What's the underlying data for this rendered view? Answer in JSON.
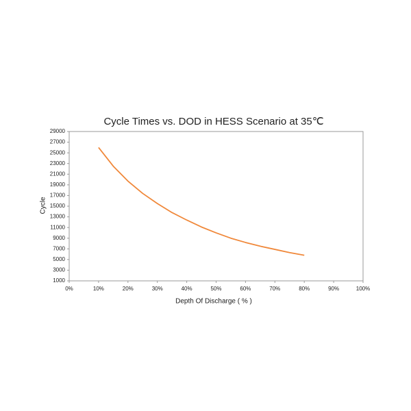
{
  "chart_data": {
    "type": "line",
    "title": "Cycle Times vs. DOD in HESS Scenario at 35℃",
    "x_label": "Depth Of Discharge ( % )",
    "y_label": "Cycle",
    "x": [
      10,
      15,
      20,
      25,
      30,
      35,
      40,
      45,
      50,
      55,
      60,
      65,
      70,
      75,
      80
    ],
    "series": [
      {
        "name": "Cycle",
        "color": "#f0883a",
        "values": [
          26000,
          22500,
          19700,
          17400,
          15500,
          13800,
          12400,
          11100,
          10000,
          9000,
          8200,
          7500,
          6900,
          6300,
          5800
        ]
      }
    ],
    "xlim": [
      0,
      100
    ],
    "xticks": [
      {
        "value": 0,
        "label": "0%"
      },
      {
        "value": 10,
        "label": "10%"
      },
      {
        "value": 20,
        "label": "20%"
      },
      {
        "value": 30,
        "label": "30%"
      },
      {
        "value": 40,
        "label": "40%"
      },
      {
        "value": 50,
        "label": "50%"
      },
      {
        "value": 60,
        "label": "60%"
      },
      {
        "value": 70,
        "label": "70%"
      },
      {
        "value": 80,
        "label": "80%"
      },
      {
        "value": 90,
        "label": "90%"
      },
      {
        "value": 100,
        "label": "100%"
      }
    ],
    "ylim": [
      1000,
      29000
    ],
    "yticks": [
      1000,
      3000,
      5000,
      7000,
      9000,
      11000,
      13000,
      15000,
      17000,
      19000,
      21000,
      23000,
      25000,
      27000,
      29000
    ],
    "grid": false
  }
}
